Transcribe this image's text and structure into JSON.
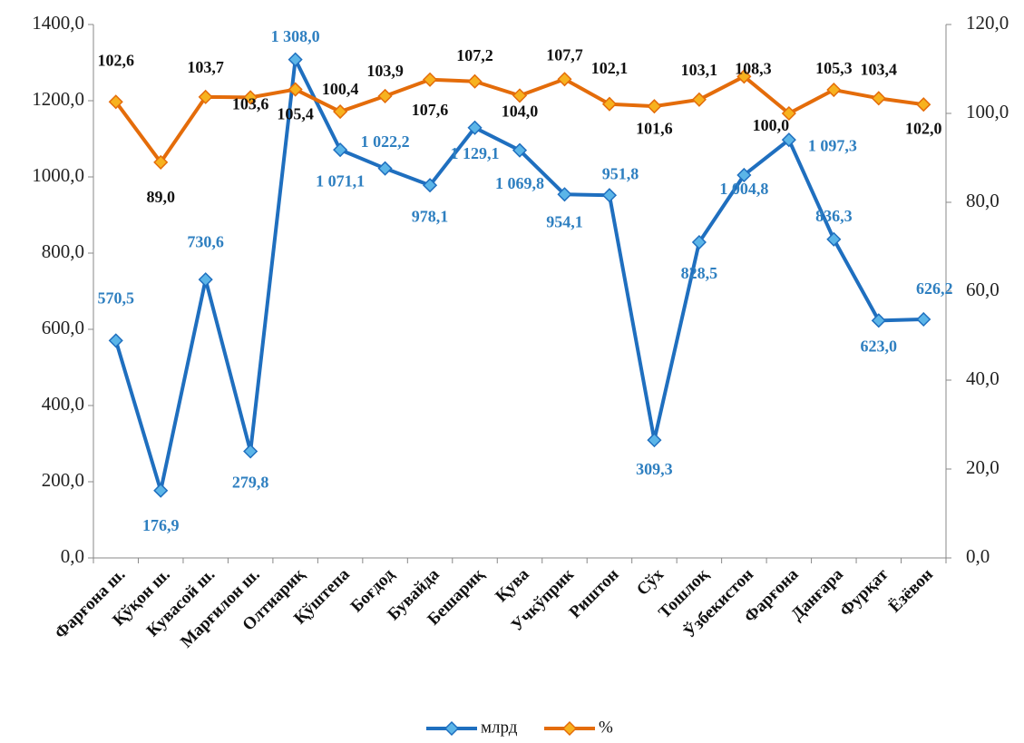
{
  "chart_data": {
    "type": "line",
    "categories": [
      "Фарғона ш.",
      "Қўқон ш.",
      "Кувасой ш.",
      "Марғилон ш.",
      "Олтиариқ",
      "Қўштепа",
      "Боғдод",
      "Бувайда",
      "Бешариқ",
      "Қува",
      "Учкўприк",
      "Риштон",
      "Сўх",
      "Тошлоқ",
      "Ўзбекистон",
      "Фарғона",
      "Данғара",
      "Фурқат",
      "Ёзёвон"
    ],
    "series": [
      {
        "name": "млрд",
        "color": "#1f6fbf",
        "marker_color": "#5bb5e8",
        "label_color": "#2e7fc0",
        "values": [
          570.5,
          176.9,
          730.6,
          279.8,
          1308.0,
          1071.1,
          1022.2,
          978.1,
          1129.1,
          1069.8,
          954.1,
          951.8,
          309.3,
          828.5,
          1004.8,
          1097.3,
          836.3,
          623.0,
          626.2
        ],
        "value_labels": [
          "570,5",
          "176,9",
          "730,6",
          "279,8",
          "1 308,0",
          "1 071,1",
          "1 022,2",
          "978,1",
          "1 129,1",
          "1 069,8",
          "954,1",
          "951,8",
          "309,3",
          "828,5",
          "1 004,8",
          "1 097,3",
          "836,3",
          "623,0",
          "626,2"
        ]
      },
      {
        "name": "%",
        "axis": "y2",
        "color": "#e46c0a",
        "marker_color": "#f7b21f",
        "label_color": "#111111",
        "values": [
          102.6,
          89.0,
          103.7,
          103.6,
          105.4,
          100.4,
          103.9,
          107.6,
          107.2,
          104.0,
          107.7,
          102.1,
          101.6,
          103.1,
          108.3,
          100.0,
          105.3,
          103.4,
          102.0
        ],
        "value_labels": [
          "102,6",
          "89,0",
          "103,7",
          "103,6",
          "105,4",
          "100,4",
          "103,9",
          "107,6",
          "107,2",
          "104,0",
          "107,7",
          "102,1",
          "101,6",
          "103,1",
          "108,3",
          "100,0",
          "105,3",
          "103,4",
          "102,0"
        ]
      }
    ],
    "ylim": [
      0,
      1400
    ],
    "yticks": [
      {
        "value": 0,
        "label": "0,0"
      },
      {
        "value": 200,
        "label": "200,0"
      },
      {
        "value": 400,
        "label": "400,0"
      },
      {
        "value": 600,
        "label": "600,0"
      },
      {
        "value": 800,
        "label": "800,0"
      },
      {
        "value": 1000,
        "label": "1000,0"
      },
      {
        "value": 1200,
        "label": "1200,0"
      },
      {
        "value": 1400,
        "label": "1400,0"
      }
    ],
    "y2lim": [
      0,
      120
    ],
    "y2ticks": [
      {
        "value": 0,
        "label": "0,0"
      },
      {
        "value": 20,
        "label": "20,0"
      },
      {
        "value": 40,
        "label": "40,0"
      },
      {
        "value": 60,
        "label": "60,0"
      },
      {
        "value": 80,
        "label": "80,0"
      },
      {
        "value": 100,
        "label": "100,0"
      },
      {
        "value": 120,
        "label": "120,0"
      }
    ],
    "legend": "bottom"
  }
}
